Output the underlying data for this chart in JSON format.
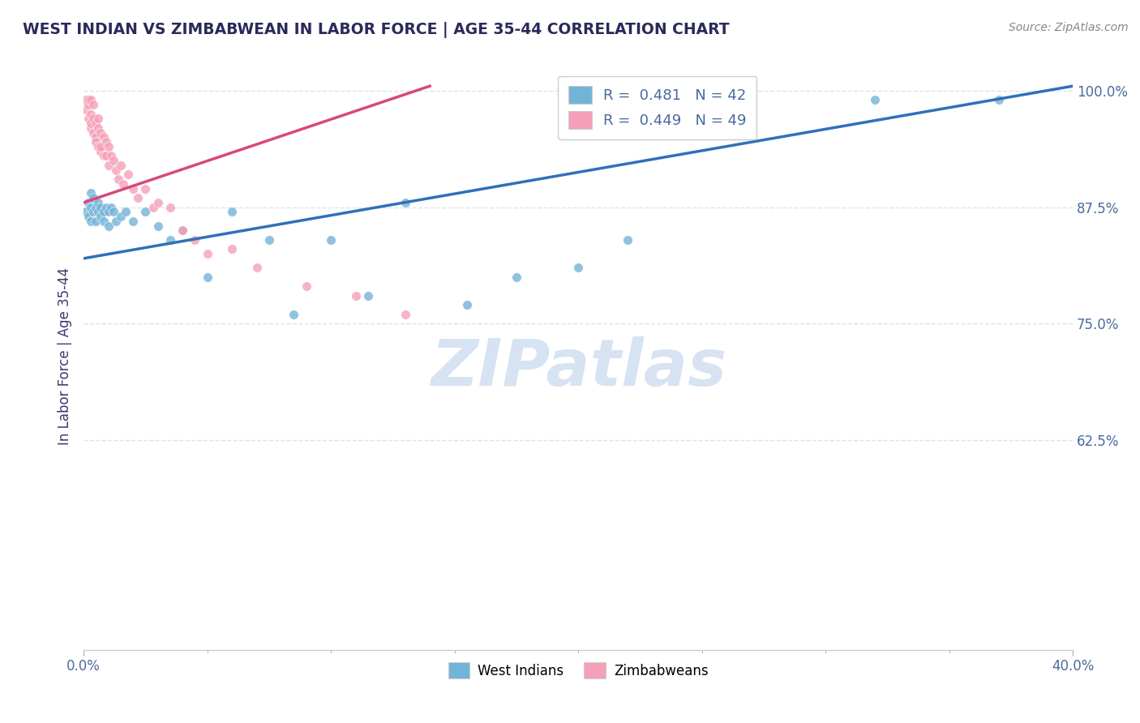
{
  "title": "WEST INDIAN VS ZIMBABWEAN IN LABOR FORCE | AGE 35-44 CORRELATION CHART",
  "source_text": "Source: ZipAtlas.com",
  "ylabel": "In Labor Force | Age 35-44",
  "x_min": 0.0,
  "x_max": 0.4,
  "y_min": 0.4,
  "y_max": 1.03,
  "y_ticks": [
    0.625,
    0.75,
    0.875,
    1.0
  ],
  "y_tick_labels": [
    "62.5%",
    "75.0%",
    "87.5%",
    "100.0%"
  ],
  "x_ticks": [
    0.0,
    0.4
  ],
  "x_tick_labels": [
    "0.0%",
    "40.0%"
  ],
  "legend_r_blue": "0.481",
  "legend_n_blue": "42",
  "legend_r_pink": "0.449",
  "legend_n_pink": "49",
  "blue_color": "#74b3d8",
  "pink_color": "#f5a0b8",
  "trend_blue_color": "#3070b8",
  "trend_pink_color": "#d84878",
  "title_color": "#2a2a5a",
  "axis_label_color": "#3a3a6e",
  "tick_color": "#4a6a9e",
  "grid_color": "#d8e4f0",
  "watermark_color": "#d0dff0",
  "blue_scatter_x": [
    0.001,
    0.002,
    0.002,
    0.003,
    0.003,
    0.003,
    0.004,
    0.004,
    0.005,
    0.005,
    0.006,
    0.006,
    0.007,
    0.007,
    0.008,
    0.008,
    0.009,
    0.01,
    0.01,
    0.011,
    0.012,
    0.013,
    0.015,
    0.017,
    0.02,
    0.025,
    0.03,
    0.035,
    0.04,
    0.05,
    0.06,
    0.075,
    0.085,
    0.1,
    0.115,
    0.13,
    0.155,
    0.175,
    0.2,
    0.22,
    0.32,
    0.37
  ],
  "blue_scatter_y": [
    0.87,
    0.88,
    0.865,
    0.875,
    0.89,
    0.86,
    0.885,
    0.87,
    0.875,
    0.86,
    0.87,
    0.88,
    0.865,
    0.875,
    0.87,
    0.86,
    0.875,
    0.87,
    0.855,
    0.875,
    0.87,
    0.86,
    0.865,
    0.87,
    0.86,
    0.87,
    0.855,
    0.84,
    0.85,
    0.8,
    0.87,
    0.84,
    0.76,
    0.84,
    0.78,
    0.88,
    0.77,
    0.8,
    0.81,
    0.84,
    0.99,
    0.99
  ],
  "pink_scatter_x": [
    0.001,
    0.001,
    0.001,
    0.002,
    0.002,
    0.002,
    0.003,
    0.003,
    0.003,
    0.003,
    0.004,
    0.004,
    0.004,
    0.005,
    0.005,
    0.005,
    0.006,
    0.006,
    0.006,
    0.007,
    0.007,
    0.007,
    0.008,
    0.008,
    0.009,
    0.009,
    0.01,
    0.01,
    0.011,
    0.012,
    0.013,
    0.014,
    0.015,
    0.016,
    0.018,
    0.02,
    0.022,
    0.025,
    0.028,
    0.03,
    0.035,
    0.04,
    0.045,
    0.05,
    0.06,
    0.07,
    0.09,
    0.11,
    0.13
  ],
  "pink_scatter_y": [
    0.99,
    0.99,
    0.98,
    0.985,
    0.97,
    0.99,
    0.96,
    0.975,
    0.99,
    0.965,
    0.955,
    0.97,
    0.985,
    0.95,
    0.965,
    0.945,
    0.96,
    0.94,
    0.97,
    0.935,
    0.955,
    0.94,
    0.93,
    0.95,
    0.93,
    0.945,
    0.92,
    0.94,
    0.93,
    0.925,
    0.915,
    0.905,
    0.92,
    0.9,
    0.91,
    0.895,
    0.885,
    0.895,
    0.875,
    0.88,
    0.875,
    0.85,
    0.84,
    0.825,
    0.83,
    0.81,
    0.79,
    0.78,
    0.76
  ],
  "blue_trend_x0": 0.0,
  "blue_trend_y0": 0.82,
  "blue_trend_x1": 0.4,
  "blue_trend_y1": 1.005,
  "pink_trend_x0": 0.0,
  "pink_trend_y0": 0.88,
  "pink_trend_x1": 0.14,
  "pink_trend_y1": 1.005
}
